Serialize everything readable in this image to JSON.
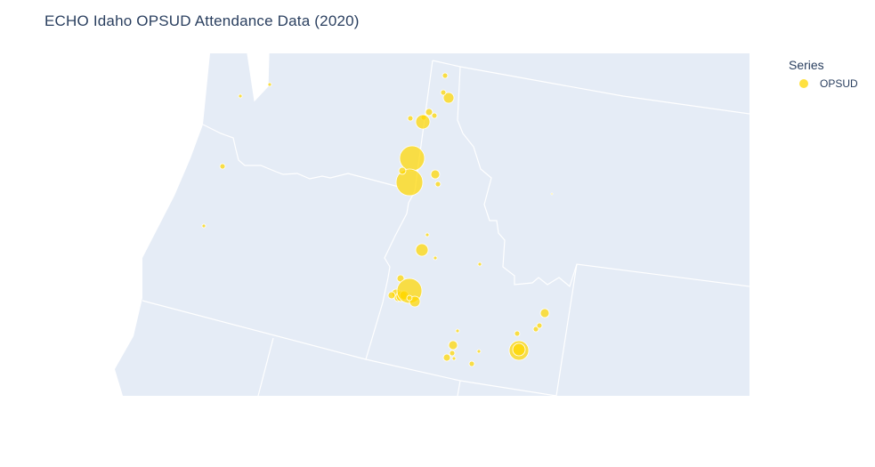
{
  "title": "ECHO Idaho OPSUD Attendance Data (2020)",
  "colors": {
    "land": "#E5ECF6",
    "borders": "#ffffff",
    "marker": "#FFD700",
    "text": "#2a3f5f"
  },
  "legend": {
    "title": "Series",
    "entries": [
      {
        "label": "OPSUD",
        "color": "#FFD700"
      }
    ]
  },
  "chart_data": {
    "type": "scatter",
    "map_type": "bubble map",
    "region": "Idaho",
    "series": [
      {
        "name": "OPSUD",
        "relative_sizes": [
          2,
          2,
          6,
          3,
          3,
          4,
          3,
          8,
          3,
          3,
          14,
          15,
          4,
          5,
          3,
          3,
          2,
          7,
          2,
          2,
          4,
          5,
          4,
          6,
          5,
          14,
          6,
          4,
          3,
          5,
          3,
          3,
          3,
          2,
          5,
          3,
          2,
          4,
          3,
          2,
          11,
          7,
          2,
          1
        ]
      }
    ]
  }
}
